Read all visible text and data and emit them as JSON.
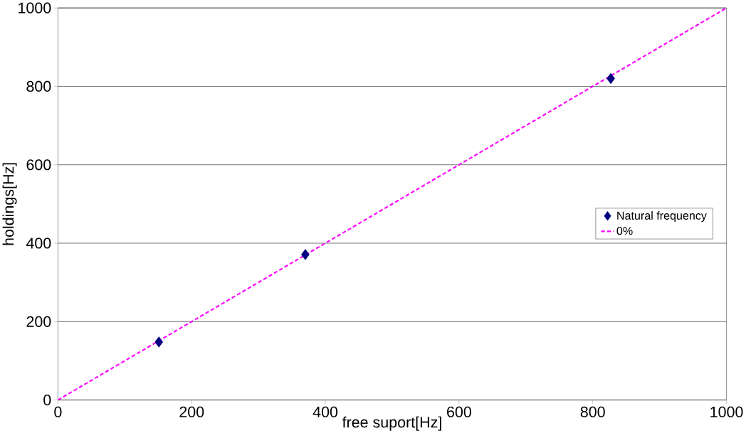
{
  "chart_data": {
    "type": "scatter",
    "xlabel": "free suport[Hz]",
    "ylabel": "holdings[Hz]",
    "xlim": [
      0,
      1000
    ],
    "ylim": [
      0,
      1000
    ],
    "xticks": [
      0,
      200,
      400,
      600,
      800,
      1000
    ],
    "yticks": [
      0,
      200,
      400,
      600,
      800,
      1000
    ],
    "grid": "y",
    "legend": "right",
    "series": [
      {
        "name": "Natural frequency",
        "marker": "diamond",
        "color": "#000080",
        "x": [
          151,
          370,
          827
        ],
        "values": [
          148,
          371,
          820
        ]
      },
      {
        "name": "0%",
        "type": "line",
        "marker": "none",
        "line_style": "dashed",
        "color": "#ff00ff",
        "x": [
          0,
          1000
        ],
        "values": [
          0,
          1000
        ]
      }
    ]
  }
}
